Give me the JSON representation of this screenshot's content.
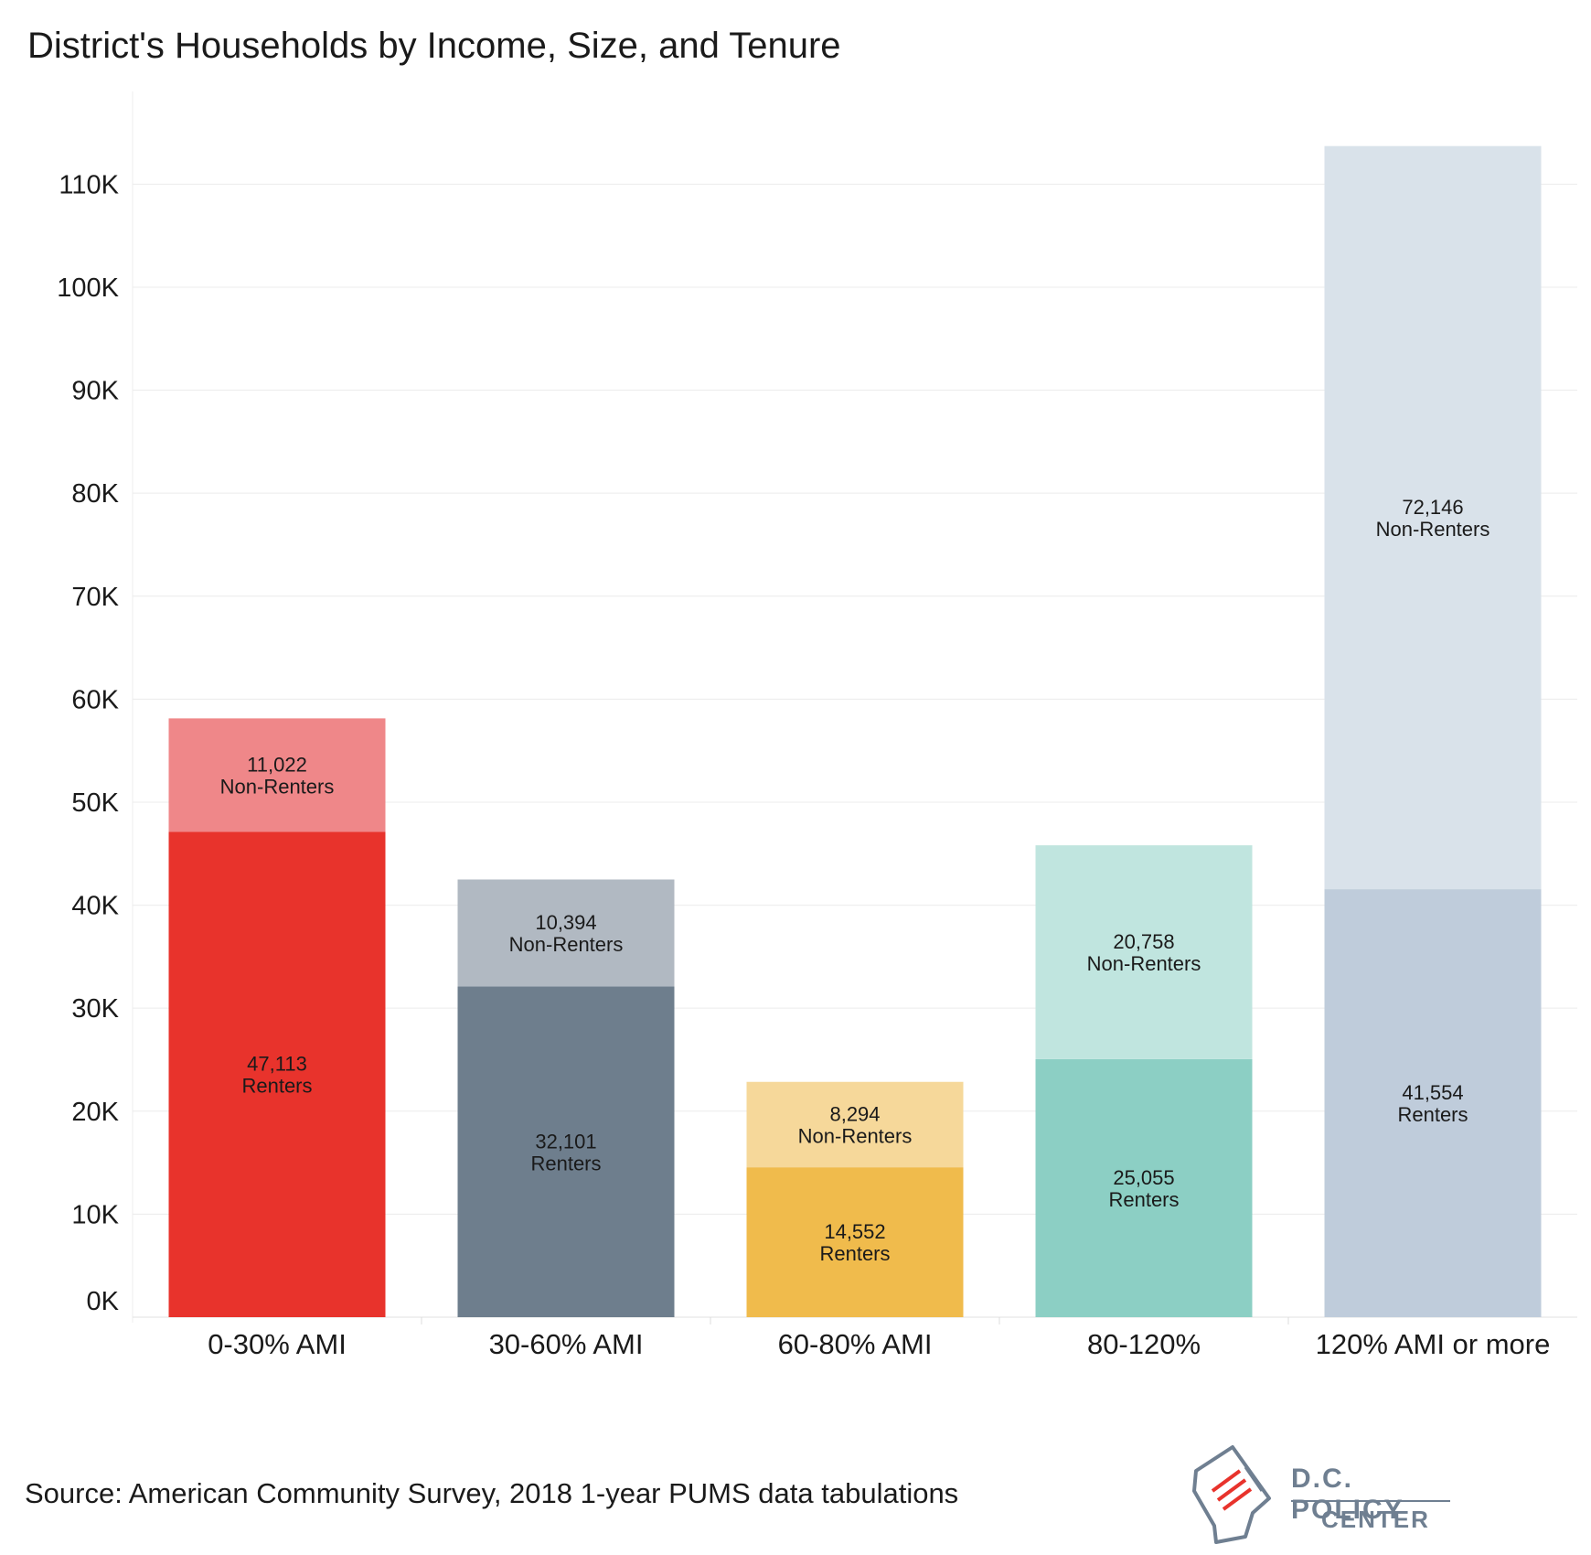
{
  "chart_data": {
    "type": "bar",
    "stacked": true,
    "title": "District's Households by Income, Size, and Tenure",
    "xlabel": "",
    "ylabel": "",
    "categories": [
      "0-30% AMI",
      "30-60% AMI",
      "60-80% AMI",
      "80-120%",
      "120% AMI or more"
    ],
    "series": [
      {
        "name": "Renters",
        "values": [
          47113,
          32101,
          14552,
          25055,
          41554
        ],
        "colors": [
          "#e8332c",
          "#6e7e8d",
          "#f0bb4c",
          "#8ccfc4",
          "#bfccdb"
        ]
      },
      {
        "name": "Non-Renters",
        "values": [
          11022,
          10394,
          8294,
          20758,
          72146
        ],
        "colors": [
          "#ef8789",
          "#b1b9c2",
          "#f6d89a",
          "#c0e5df",
          "#d9e2ea"
        ]
      }
    ],
    "bar_labels": {
      "Renters": [
        "47,113\nRenters",
        "32,101\nRenters",
        "14,552\nRenters",
        "25,055\nRenters",
        "41,554\nRenters"
      ],
      "Non-Renters": [
        "11,022\nNon-Renters",
        "10,394\nNon-Renters",
        "8,294\nNon-Renters",
        "20,758\nNon-Renters",
        "72,146\nNon-Renters"
      ]
    },
    "yticks": [
      "0K",
      "10K",
      "20K",
      "30K",
      "40K",
      "50K",
      "60K",
      "70K",
      "80K",
      "90K",
      "100K",
      "110K"
    ],
    "ylim": [
      0,
      119000
    ],
    "grid": true
  },
  "footer": {
    "source": "Source: American Community Survey, 2018 1-year PUMS data tabulations",
    "logo_line1": "D.C. POLICY",
    "logo_line2": "CENTER"
  }
}
